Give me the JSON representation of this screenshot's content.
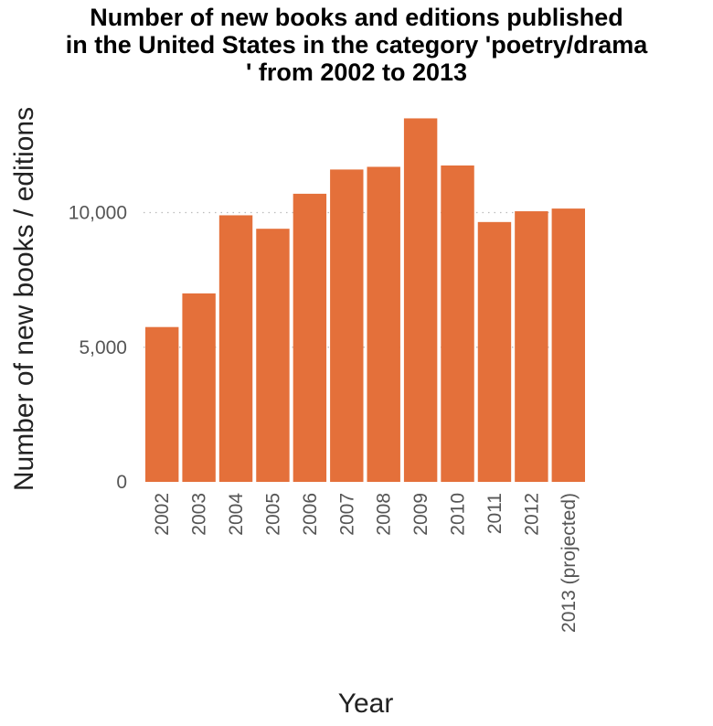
{
  "chart_data": {
    "type": "bar",
    "title_lines": [
      "Number of new books and editions published",
      "in the United States in the category 'poetry/drama",
      "' from 2002 to 2013"
    ],
    "xlabel": "Year",
    "ylabel": "Number of new books / editions",
    "categories": [
      "2002",
      "2003",
      "2004",
      "2005",
      "2006",
      "2007",
      "2008",
      "2009",
      "2010",
      "2011",
      "2012",
      "2013 (projected)"
    ],
    "values": [
      5750,
      7000,
      9900,
      9400,
      10700,
      11600,
      11700,
      13500,
      11750,
      9650,
      10050,
      10150
    ],
    "ylim": [
      0,
      14500
    ],
    "yticks": [
      0,
      5000,
      10000
    ],
    "ytick_labels": [
      "0",
      "5,000",
      "10,000"
    ],
    "grid": "dotted horizontal",
    "bar_color": "#e4703a",
    "grid_color": "#bbbbbb"
  }
}
